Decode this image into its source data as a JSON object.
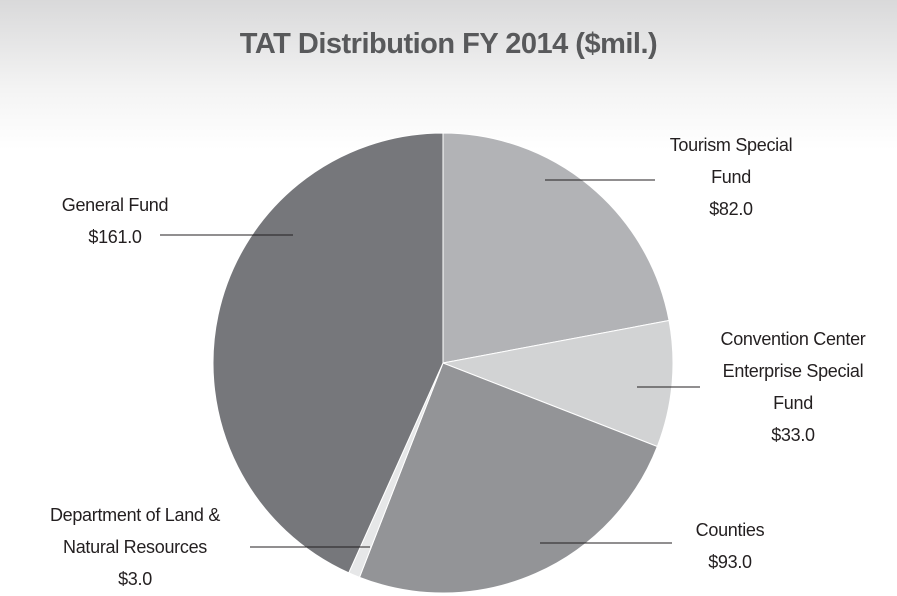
{
  "chart_data": {
    "type": "pie",
    "title": "TAT Distribution FY 2014 ($mil.)",
    "categories": [
      "Tourism Special Fund",
      "Convention Center Enterprise Special Fund",
      "Counties",
      "Department of Land & Natural Resources",
      "General Fund"
    ],
    "values": [
      82.0,
      33.0,
      93.0,
      3.0,
      161.0
    ],
    "value_labels": [
      "$82.0",
      "$33.0",
      "$93.0",
      "$3.0",
      "$161.0"
    ],
    "colors": [
      "#b2b3b6",
      "#d2d3d4",
      "#939497",
      "#e6e7e8",
      "#76777b"
    ]
  }
}
